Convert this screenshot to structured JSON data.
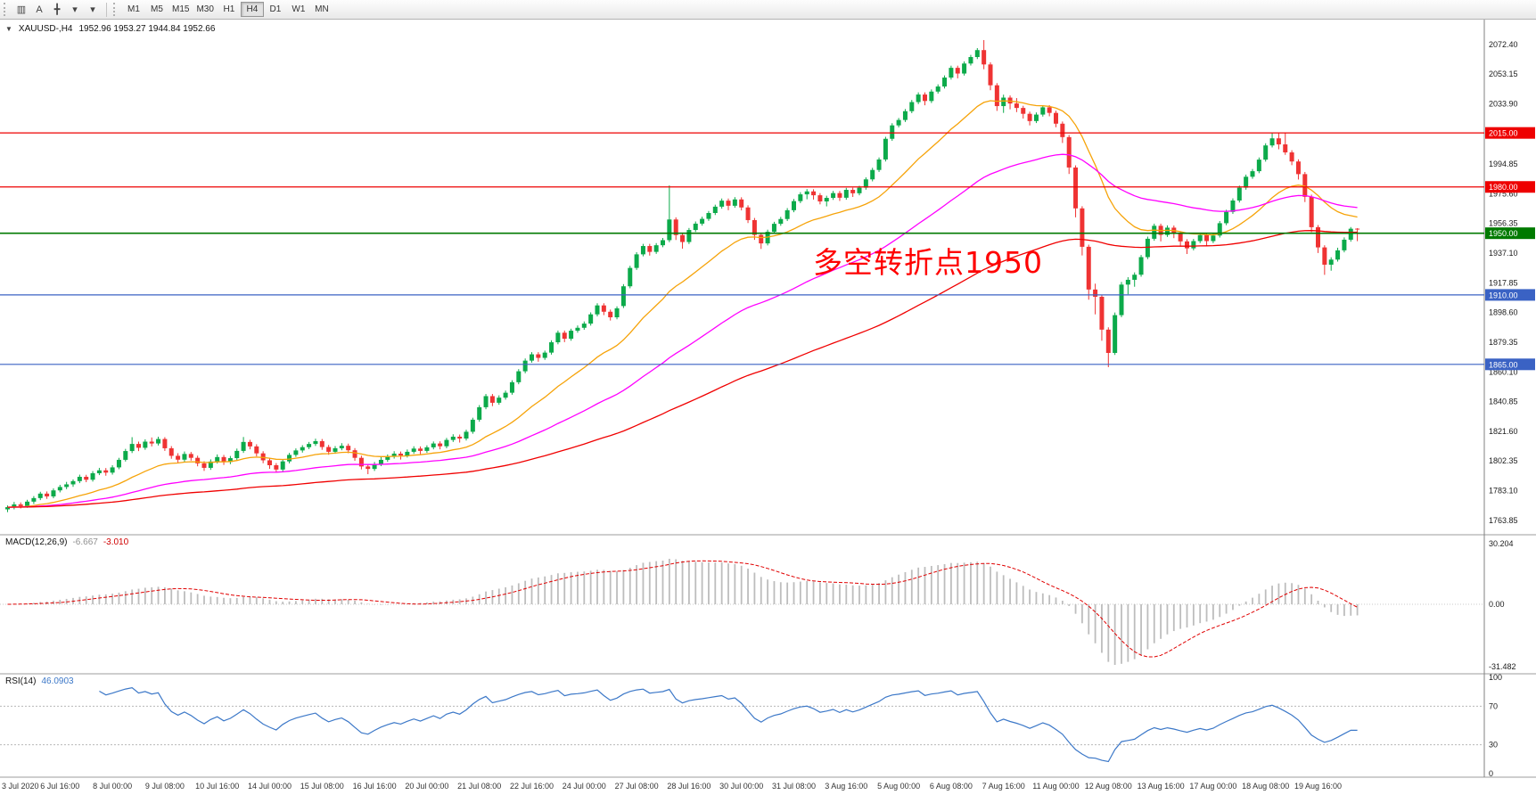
{
  "toolbar": {
    "icons": [
      {
        "name": "charts-bar-icon",
        "glyph": "▥"
      },
      {
        "name": "text-label-icon",
        "glyph": "A"
      },
      {
        "name": "crosshair-icon",
        "glyph": "╋"
      },
      {
        "name": "cursor-dropdown-icon",
        "glyph": "▾"
      },
      {
        "name": "draw-dropdown-icon",
        "glyph": "▾"
      }
    ],
    "timeframes": [
      "M1",
      "M5",
      "M15",
      "M30",
      "H1",
      "H4",
      "D1",
      "W1",
      "MN"
    ],
    "active_timeframe": "H4"
  },
  "header": {
    "symbol": "XAUUSD-,H4",
    "ohlc": "1952.96 1953.27 1944.84 1952.66"
  },
  "annotation": {
    "text": "多空转折点1950",
    "color": "#ff0000"
  },
  "levels": [
    {
      "value": "2015.00",
      "price": 2015.0,
      "color": "#ee0000",
      "width": 1.2
    },
    {
      "value": "1980.00",
      "price": 1980.0,
      "color": "#ee0000",
      "width": 1.2
    },
    {
      "value": "1950.00",
      "price": 1950.0,
      "color": "#007a00",
      "width": 1.6
    },
    {
      "value": "1910.00",
      "price": 1910.0,
      "color": "#3a62c4",
      "width": 1.2
    },
    {
      "value": "1865.00",
      "price": 1865.0,
      "color": "#3a62c4",
      "width": 1.2
    }
  ],
  "price_axis": {
    "labels": [
      "2072.40",
      "2053.15",
      "2033.90",
      "1994.85",
      "1975.60",
      "1956.35",
      "1937.10",
      "1917.85",
      "1898.60",
      "1879.35",
      "1860.10",
      "1840.85",
      "1821.60",
      "1802.35",
      "1783.10",
      "1763.85"
    ]
  },
  "time_axis": {
    "labels": [
      "3 Jul 2020",
      "6 Jul 16:00",
      "8 Jul 00:00",
      "9 Jul 08:00",
      "10 Jul 16:00",
      "14 Jul 00:00",
      "15 Jul 08:00",
      "16 Jul 16:00",
      "20 Jul 00:00",
      "21 Jul 08:00",
      "22 Jul 16:00",
      "24 Jul 00:00",
      "27 Jul 08:00",
      "28 Jul 16:00",
      "30 Jul 00:00",
      "31 Jul 08:00",
      "3 Aug 16:00",
      "5 Aug 00:00",
      "6 Aug 08:00",
      "7 Aug 16:00",
      "11 Aug 00:00",
      "12 Aug 08:00",
      "13 Aug 16:00",
      "17 Aug 00:00",
      "18 Aug 08:00",
      "19 Aug 16:00"
    ],
    "bars_per_label": 8
  },
  "macd": {
    "label": "MACD(12,26,9)",
    "value_main": "-6.667",
    "value_signal": "-3.010",
    "axis": [
      "30.204",
      "0.00",
      "-31.482"
    ],
    "params": {
      "fast": 12,
      "slow": 26,
      "signal": 9
    }
  },
  "rsi": {
    "label": "RSI(14)",
    "value": "46.0903",
    "axis": [
      "100",
      "70",
      "30",
      "0"
    ],
    "levels": [
      70,
      30
    ],
    "period": 14
  },
  "chart_data": {
    "type": "candlestick",
    "symbol": "XAUUSD",
    "timeframe": "H4",
    "price_range": [
      1758,
      2085
    ],
    "colors": {
      "bull": "#0caa4a",
      "bear": "#ef3333",
      "ma_fast": "#f6a309",
      "ma_medium": "#ff00ff",
      "ma_slow": "#f00000",
      "macd_bars": "#bdbdbd",
      "macd_signal": "#e00000",
      "rsi_line": "#3c78c8"
    },
    "moving_averages": [
      {
        "name": "fast",
        "period": 20,
        "color": "#f6a309"
      },
      {
        "name": "medium",
        "period": 55,
        "color": "#ff00ff"
      },
      {
        "name": "slow",
        "period": 120,
        "color": "#f00000"
      }
    ],
    "candles": [
      [
        1771.0,
        1773.5,
        1769.2,
        1772.4
      ],
      [
        1772.4,
        1775.8,
        1771.0,
        1774.2
      ],
      [
        1774.2,
        1775.5,
        1771.6,
        1773.1
      ],
      [
        1773.1,
        1777.2,
        1772.0,
        1776.0
      ],
      [
        1776.0,
        1779.6,
        1774.5,
        1778.3
      ],
      [
        1778.3,
        1782.4,
        1777.0,
        1781.2
      ],
      [
        1781.2,
        1782.6,
        1777.8,
        1779.4
      ],
      [
        1779.4,
        1784.6,
        1778.2,
        1783.3
      ],
      [
        1783.3,
        1786.9,
        1782.0,
        1785.5
      ],
      [
        1785.5,
        1788.8,
        1784.1,
        1787.2
      ],
      [
        1787.2,
        1790.4,
        1785.6,
        1789.3
      ],
      [
        1789.3,
        1793.5,
        1788.0,
        1792.1
      ],
      [
        1792.1,
        1793.4,
        1788.6,
        1790.2
      ],
      [
        1790.2,
        1795.8,
        1789.0,
        1794.4
      ],
      [
        1794.4,
        1797.9,
        1793.2,
        1796.3
      ],
      [
        1796.3,
        1797.8,
        1792.8,
        1794.8
      ],
      [
        1794.8,
        1799.6,
        1793.5,
        1798.2
      ],
      [
        1798.2,
        1804.4,
        1797.0,
        1803.1
      ],
      [
        1803.1,
        1810.2,
        1802.0,
        1808.8
      ],
      [
        1808.8,
        1817.8,
        1807.5,
        1813.4
      ],
      [
        1813.4,
        1814.9,
        1808.8,
        1810.9
      ],
      [
        1810.9,
        1816.4,
        1809.6,
        1814.9
      ],
      [
        1814.9,
        1817.6,
        1811.8,
        1813.7
      ],
      [
        1813.7,
        1818.1,
        1812.4,
        1816.6
      ],
      [
        1816.6,
        1817.8,
        1808.9,
        1810.6
      ],
      [
        1810.6,
        1812.0,
        1803.8,
        1805.7
      ],
      [
        1805.7,
        1807.4,
        1800.9,
        1803.2
      ],
      [
        1803.2,
        1808.5,
        1801.8,
        1806.9
      ],
      [
        1806.9,
        1808.2,
        1802.6,
        1804.4
      ],
      [
        1804.4,
        1805.8,
        1798.9,
        1800.8
      ],
      [
        1800.8,
        1802.2,
        1795.9,
        1797.9
      ],
      [
        1797.9,
        1803.4,
        1796.6,
        1802.0
      ],
      [
        1802.0,
        1806.6,
        1800.7,
        1804.9
      ],
      [
        1804.9,
        1806.3,
        1799.8,
        1801.7
      ],
      [
        1801.7,
        1805.6,
        1800.3,
        1804.2
      ],
      [
        1804.2,
        1810.4,
        1803.0,
        1808.9
      ],
      [
        1808.9,
        1817.9,
        1807.6,
        1814.7
      ],
      [
        1814.7,
        1816.1,
        1809.9,
        1811.8
      ],
      [
        1811.8,
        1813.2,
        1805.4,
        1807.3
      ],
      [
        1807.3,
        1808.7,
        1800.9,
        1802.8
      ],
      [
        1802.8,
        1804.1,
        1797.3,
        1799.6
      ],
      [
        1799.6,
        1801.0,
        1794.8,
        1796.8
      ],
      [
        1796.8,
        1803.3,
        1795.5,
        1802.1
      ],
      [
        1802.1,
        1807.6,
        1800.8,
        1806.3
      ],
      [
        1806.3,
        1810.5,
        1805.0,
        1809.2
      ],
      [
        1809.2,
        1812.6,
        1807.8,
        1811.3
      ],
      [
        1811.3,
        1814.7,
        1810.0,
        1813.4
      ],
      [
        1813.4,
        1816.8,
        1812.1,
        1815.2
      ],
      [
        1815.2,
        1816.6,
        1809.6,
        1811.4
      ],
      [
        1811.4,
        1812.8,
        1806.4,
        1808.3
      ],
      [
        1808.3,
        1812.0,
        1807.0,
        1810.6
      ],
      [
        1810.6,
        1813.9,
        1809.3,
        1812.2
      ],
      [
        1812.2,
        1813.6,
        1807.4,
        1809.3
      ],
      [
        1809.3,
        1810.7,
        1802.5,
        1804.4
      ],
      [
        1804.4,
        1805.8,
        1796.9,
        1798.8
      ],
      [
        1798.8,
        1800.2,
        1793.8,
        1797.2
      ],
      [
        1797.2,
        1801.7,
        1795.9,
        1800.3
      ],
      [
        1800.3,
        1804.8,
        1799.0,
        1803.1
      ],
      [
        1803.1,
        1806.6,
        1801.8,
        1805.2
      ],
      [
        1805.2,
        1808.7,
        1803.9,
        1807.1
      ],
      [
        1807.1,
        1808.5,
        1803.3,
        1805.9
      ],
      [
        1805.9,
        1809.8,
        1804.6,
        1808.3
      ],
      [
        1808.3,
        1811.9,
        1807.0,
        1810.4
      ],
      [
        1810.4,
        1811.8,
        1806.8,
        1808.9
      ],
      [
        1808.9,
        1812.5,
        1807.6,
        1811.2
      ],
      [
        1811.2,
        1815.0,
        1809.9,
        1813.7
      ],
      [
        1813.7,
        1815.1,
        1809.9,
        1811.9
      ],
      [
        1811.9,
        1817.3,
        1810.6,
        1816.0
      ],
      [
        1816.0,
        1819.7,
        1814.7,
        1818.1
      ],
      [
        1818.1,
        1819.5,
        1814.3,
        1816.9
      ],
      [
        1816.9,
        1822.6,
        1815.6,
        1821.3
      ],
      [
        1821.3,
        1830.4,
        1820.0,
        1829.1
      ],
      [
        1829.1,
        1838.6,
        1827.8,
        1837.2
      ],
      [
        1837.2,
        1845.8,
        1835.9,
        1844.4
      ],
      [
        1844.4,
        1845.8,
        1837.9,
        1840.1
      ],
      [
        1840.1,
        1844.9,
        1838.8,
        1843.4
      ],
      [
        1843.4,
        1848.0,
        1842.1,
        1846.6
      ],
      [
        1846.6,
        1854.7,
        1845.3,
        1853.4
      ],
      [
        1853.4,
        1861.9,
        1852.1,
        1860.5
      ],
      [
        1860.5,
        1868.8,
        1859.2,
        1867.4
      ],
      [
        1867.4,
        1872.9,
        1866.1,
        1871.5
      ],
      [
        1871.5,
        1872.9,
        1866.7,
        1869.2
      ],
      [
        1869.2,
        1873.9,
        1867.9,
        1872.6
      ],
      [
        1872.6,
        1880.6,
        1871.3,
        1879.3
      ],
      [
        1879.3,
        1886.9,
        1878.0,
        1885.5
      ],
      [
        1885.5,
        1886.9,
        1879.4,
        1881.6
      ],
      [
        1881.6,
        1888.1,
        1880.3,
        1886.8
      ],
      [
        1886.8,
        1890.2,
        1885.5,
        1888.7
      ],
      [
        1888.7,
        1892.8,
        1887.4,
        1891.4
      ],
      [
        1891.4,
        1898.7,
        1890.1,
        1897.4
      ],
      [
        1897.4,
        1904.6,
        1896.1,
        1903.2
      ],
      [
        1903.2,
        1904.6,
        1896.9,
        1899.1
      ],
      [
        1899.1,
        1900.5,
        1893.4,
        1895.5
      ],
      [
        1895.5,
        1902.6,
        1894.2,
        1901.3
      ],
      [
        1902.8,
        1917.0,
        1901.5,
        1915.6
      ],
      [
        1915.6,
        1928.9,
        1914.3,
        1927.5
      ],
      [
        1927.5,
        1937.7,
        1926.2,
        1936.3
      ],
      [
        1936.3,
        1943.1,
        1935.0,
        1941.7
      ],
      [
        1941.7,
        1943.1,
        1935.5,
        1937.9
      ],
      [
        1937.9,
        1943.6,
        1936.6,
        1942.2
      ],
      [
        1942.2,
        1946.9,
        1940.9,
        1945.5
      ],
      [
        1945.5,
        1981.0,
        1944.2,
        1958.9
      ],
      [
        1958.9,
        1960.3,
        1945.6,
        1948.8
      ],
      [
        1948.8,
        1950.2,
        1940.0,
        1944.3
      ],
      [
        1944.3,
        1953.4,
        1943.0,
        1952.1
      ],
      [
        1952.1,
        1957.6,
        1950.8,
        1956.2
      ],
      [
        1956.2,
        1960.7,
        1954.9,
        1959.3
      ],
      [
        1959.3,
        1964.4,
        1958.0,
        1963.1
      ],
      [
        1963.1,
        1968.5,
        1961.8,
        1967.2
      ],
      [
        1967.2,
        1972.5,
        1965.9,
        1971.1
      ],
      [
        1971.1,
        1972.5,
        1964.9,
        1967.8
      ],
      [
        1967.8,
        1973.4,
        1966.5,
        1971.9
      ],
      [
        1971.9,
        1973.3,
        1964.8,
        1966.7
      ],
      [
        1966.7,
        1968.1,
        1956.6,
        1958.5
      ],
      [
        1958.5,
        1959.9,
        1945.7,
        1948.9
      ],
      [
        1948.9,
        1950.3,
        1939.8,
        1943.4
      ],
      [
        1943.4,
        1952.3,
        1942.1,
        1950.9
      ],
      [
        1950.9,
        1957.4,
        1949.6,
        1956.1
      ],
      [
        1956.1,
        1960.6,
        1954.8,
        1959.2
      ],
      [
        1959.2,
        1966.3,
        1957.9,
        1964.9
      ],
      [
        1964.9,
        1972.2,
        1963.6,
        1970.8
      ],
      [
        1970.8,
        1976.6,
        1969.5,
        1975.2
      ],
      [
        1975.2,
        1978.6,
        1972.0,
        1977.1
      ],
      [
        1977.1,
        1978.5,
        1971.8,
        1974.6
      ],
      [
        1974.6,
        1976.0,
        1968.7,
        1970.6
      ],
      [
        1970.6,
        1974.3,
        1967.4,
        1972.9
      ],
      [
        1972.9,
        1977.4,
        1971.6,
        1976.0
      ],
      [
        1976.0,
        1977.4,
        1970.9,
        1973.0
      ],
      [
        1973.0,
        1979.4,
        1971.7,
        1978.1
      ],
      [
        1978.1,
        1979.5,
        1973.5,
        1975.9
      ],
      [
        1975.9,
        1980.8,
        1974.6,
        1979.5
      ],
      [
        1979.5,
        1986.2,
        1978.2,
        1984.9
      ],
      [
        1984.9,
        1992.4,
        1983.6,
        1991.0
      ],
      [
        1991.0,
        1999.1,
        1989.7,
        1997.8
      ],
      [
        1997.8,
        2012.5,
        1996.5,
        2011.2
      ],
      [
        2011.2,
        2021.3,
        2009.9,
        2019.9
      ],
      [
        2019.9,
        2024.7,
        2018.6,
        2023.4
      ],
      [
        2023.4,
        2030.5,
        2022.1,
        2029.1
      ],
      [
        2029.1,
        2036.4,
        2027.8,
        2035.0
      ],
      [
        2035.0,
        2041.3,
        2033.7,
        2039.9
      ],
      [
        2039.9,
        2041.3,
        2032.9,
        2035.7
      ],
      [
        2035.7,
        2043.2,
        2034.4,
        2041.8
      ],
      [
        2041.8,
        2046.5,
        2040.5,
        2045.1
      ],
      [
        2045.1,
        2052.3,
        2043.8,
        2050.9
      ],
      [
        2050.9,
        2058.6,
        2049.6,
        2057.2
      ],
      [
        2057.2,
        2058.6,
        2050.4,
        2053.5
      ],
      [
        2053.5,
        2061.4,
        2052.2,
        2060.0
      ],
      [
        2060.0,
        2065.6,
        2058.7,
        2064.2
      ],
      [
        2064.2,
        2070.0,
        2062.9,
        2068.7
      ],
      [
        2068.7,
        2075.2,
        2056.3,
        2059.4
      ],
      [
        2059.4,
        2060.8,
        2042.7,
        2045.9
      ],
      [
        2045.9,
        2047.3,
        2029.3,
        2032.4
      ],
      [
        2032.4,
        2039.8,
        2028.0,
        2037.9
      ],
      [
        2037.9,
        2039.3,
        2030.3,
        2034.1
      ],
      [
        2034.1,
        2037.6,
        2028.5,
        2031.2
      ],
      [
        2031.2,
        2032.6,
        2024.3,
        2027.4
      ],
      [
        2027.4,
        2028.8,
        2019.9,
        2022.7
      ],
      [
        2022.7,
        2028.3,
        2021.4,
        2026.9
      ],
      [
        2026.9,
        2033.0,
        2025.6,
        2031.6
      ],
      [
        2031.6,
        2033.0,
        2025.8,
        2028.0
      ],
      [
        2028.0,
        2029.4,
        2018.7,
        2021.0
      ],
      [
        2021.0,
        2022.4,
        2008.5,
        2012.3
      ],
      [
        2012.3,
        2013.7,
        1988.4,
        1992.6
      ],
      [
        1992.6,
        1994.0,
        1960.3,
        1966.1
      ],
      [
        1966.1,
        1967.5,
        1935.6,
        1941.2
      ],
      [
        1941.2,
        1942.6,
        1906.9,
        1913.5
      ],
      [
        1913.5,
        1917.3,
        1897.4,
        1908.8
      ],
      [
        1908.8,
        1910.2,
        1880.3,
        1887.5
      ],
      [
        1887.5,
        1889.0,
        1863.2,
        1872.4
      ],
      [
        1872.4,
        1898.6,
        1871.1,
        1896.9
      ],
      [
        1896.9,
        1918.4,
        1895.6,
        1916.7
      ],
      [
        1916.7,
        1921.5,
        1910.4,
        1919.8
      ],
      [
        1919.8,
        1924.6,
        1915.3,
        1923.1
      ],
      [
        1923.1,
        1935.9,
        1921.8,
        1934.5
      ],
      [
        1934.5,
        1947.8,
        1933.2,
        1946.4
      ],
      [
        1946.4,
        1956.2,
        1945.1,
        1954.8
      ],
      [
        1954.8,
        1956.2,
        1944.7,
        1948.9
      ],
      [
        1948.9,
        1955.1,
        1947.6,
        1953.6
      ],
      [
        1953.6,
        1955.0,
        1946.8,
        1949.8
      ],
      [
        1949.8,
        1951.2,
        1941.3,
        1944.7
      ],
      [
        1944.7,
        1946.1,
        1936.5,
        1940.2
      ],
      [
        1940.2,
        1946.3,
        1938.9,
        1944.9
      ],
      [
        1944.9,
        1950.4,
        1943.6,
        1948.8
      ],
      [
        1948.8,
        1950.2,
        1941.9,
        1944.9
      ],
      [
        1944.9,
        1949.9,
        1943.6,
        1948.5
      ],
      [
        1948.5,
        1957.9,
        1947.2,
        1956.5
      ],
      [
        1956.5,
        1965.2,
        1955.2,
        1963.8
      ],
      [
        1963.8,
        1972.6,
        1962.5,
        1971.2
      ],
      [
        1971.2,
        1980.9,
        1969.9,
        1979.5
      ],
      [
        1979.5,
        1988.0,
        1978.2,
        1986.6
      ],
      [
        1986.6,
        1991.6,
        1985.3,
        1990.2
      ],
      [
        1990.2,
        1999.1,
        1988.9,
        1997.7
      ],
      [
        1997.7,
        2008.3,
        1996.4,
        2006.9
      ],
      [
        2006.9,
        2015.1,
        2005.6,
        2011.5
      ],
      [
        2011.5,
        2014.8,
        2004.4,
        2007.6
      ],
      [
        2007.6,
        2014.9,
        2000.8,
        2002.4
      ],
      [
        2002.4,
        2003.8,
        1994.1,
        1996.5
      ],
      [
        1996.5,
        1997.9,
        1984.8,
        1988.3
      ],
      [
        1988.3,
        1989.7,
        1970.2,
        1973.6
      ],
      [
        1973.6,
        1975.0,
        1950.7,
        1953.9
      ],
      [
        1953.9,
        1955.3,
        1937.2,
        1940.8
      ],
      [
        1940.8,
        1942.2,
        1923.0,
        1929.6
      ],
      [
        1929.6,
        1934.4,
        1925.7,
        1932.9
      ],
      [
        1932.9,
        1940.6,
        1931.6,
        1938.9
      ],
      [
        1938.9,
        1947.3,
        1937.6,
        1945.8
      ],
      [
        1945.8,
        1954.0,
        1944.5,
        1952.9
      ],
      [
        1952.96,
        1953.27,
        1944.84,
        1952.66
      ]
    ]
  }
}
